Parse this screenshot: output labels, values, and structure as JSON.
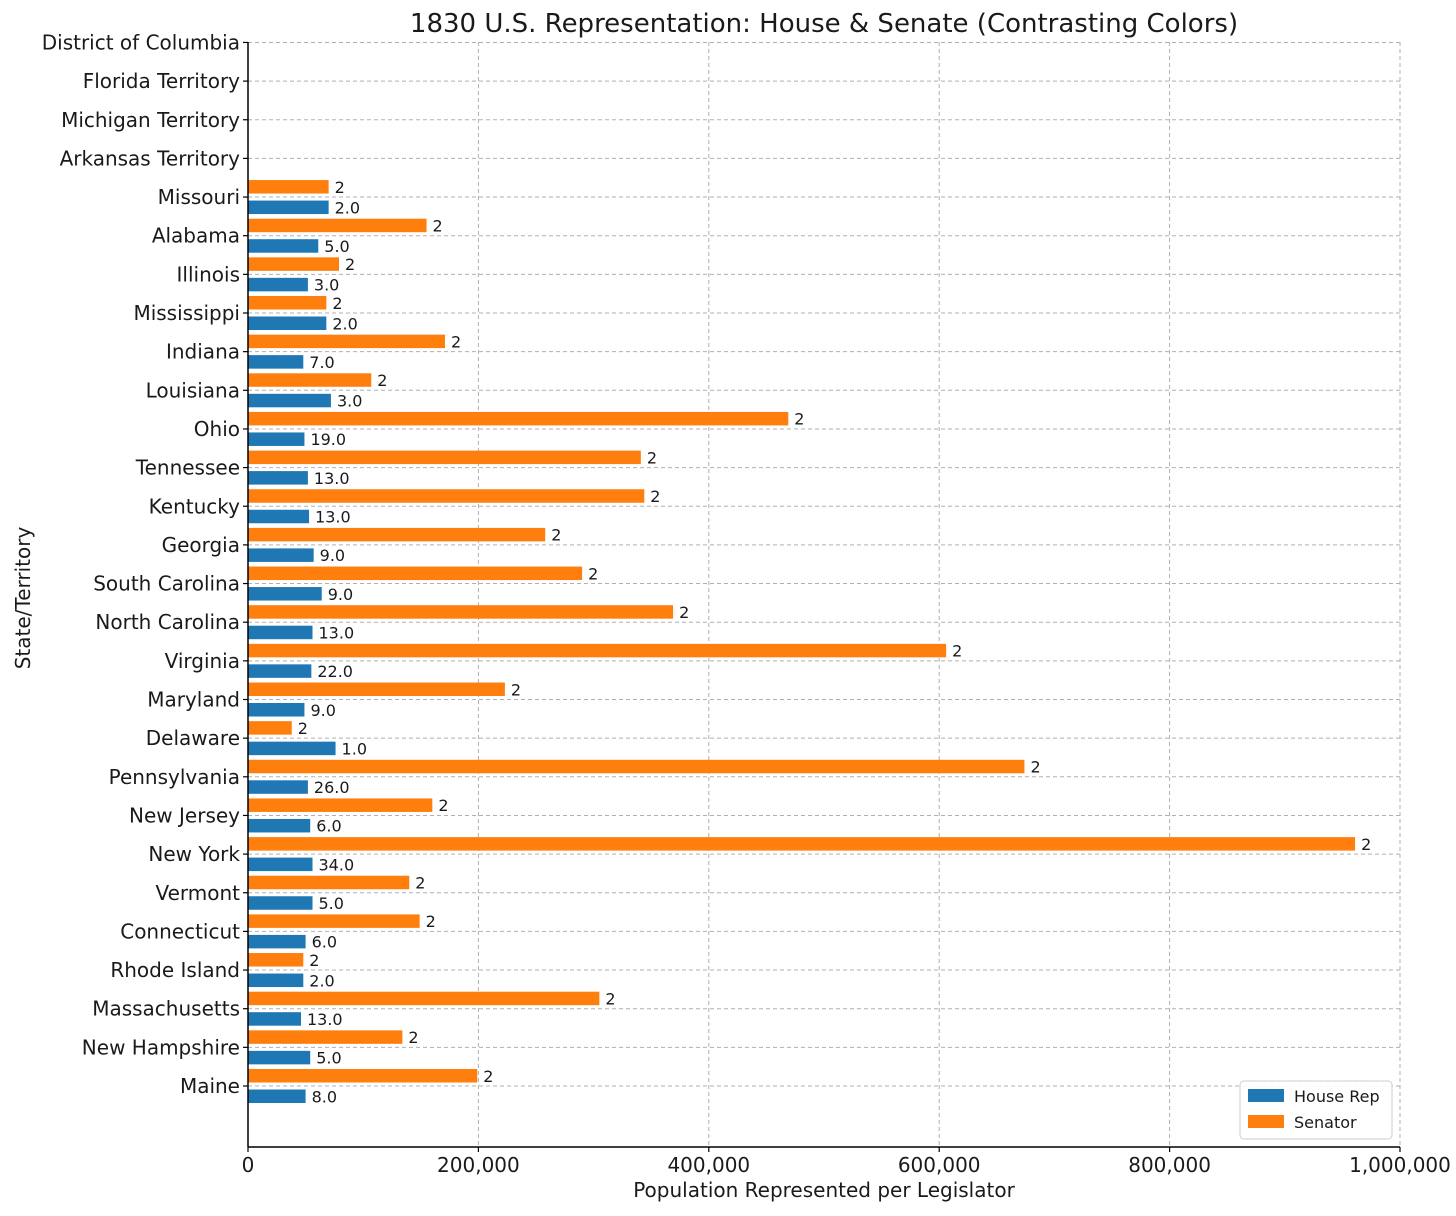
{
  "chart_data": {
    "type": "bar",
    "orientation": "horizontal",
    "title": "1830 U.S. Representation: House & Senate (Contrasting Colors)",
    "xlabel": "Population Represented per Legislator",
    "ylabel": "State/Territory",
    "xlim": [
      0,
      1000000
    ],
    "xticks": [
      0,
      200000,
      400000,
      600000,
      800000,
      1000000
    ],
    "xtick_labels": [
      "0",
      "200,000",
      "400,000",
      "600,000",
      "800,000",
      "1,000,000"
    ],
    "grid": true,
    "legend_position": "bottom-right",
    "categories": [
      "Maine",
      "New Hampshire",
      "Massachusetts",
      "Rhode Island",
      "Connecticut",
      "Vermont",
      "New York",
      "New Jersey",
      "Pennsylvania",
      "Delaware",
      "Maryland",
      "Virginia",
      "North Carolina",
      "South Carolina",
      "Georgia",
      "Kentucky",
      "Tennessee",
      "Ohio",
      "Louisiana",
      "Indiana",
      "Mississippi",
      "Illinois",
      "Alabama",
      "Missouri",
      "Arkansas Territory",
      "Michigan Territory",
      "Florida Territory",
      "District of Columbia"
    ],
    "series": [
      {
        "name": "House Rep",
        "color": "#1f77b4",
        "values": [
          50000,
          54000,
          46000,
          48000,
          50000,
          56000,
          56000,
          54000,
          52000,
          76000,
          49000,
          55000,
          56000,
          64000,
          57000,
          53000,
          52000,
          49000,
          72000,
          48000,
          68000,
          52000,
          61000,
          70000,
          0,
          0,
          0,
          0
        ],
        "labels": [
          "8.0",
          "5.0",
          "13.0",
          "2.0",
          "6.0",
          "5.0",
          "34.0",
          "6.0",
          "26.0",
          "1.0",
          "9.0",
          "22.0",
          "13.0",
          "9.0",
          "9.0",
          "13.0",
          "13.0",
          "19.0",
          "3.0",
          "7.0",
          "2.0",
          "3.0",
          "5.0",
          "2.0",
          "",
          "",
          "",
          ""
        ]
      },
      {
        "name": "Senator",
        "color": "#ff7f0e",
        "values": [
          199000,
          134000,
          305000,
          48000,
          149000,
          140000,
          961000,
          160000,
          674000,
          38000,
          223000,
          606000,
          369000,
          290000,
          258000,
          344000,
          341000,
          469000,
          107000,
          171000,
          68000,
          79000,
          155000,
          70000,
          0,
          0,
          0,
          0
        ],
        "labels": [
          "2",
          "2",
          "2",
          "2",
          "2",
          "2",
          "2",
          "2",
          "2",
          "2",
          "2",
          "2",
          "2",
          "2",
          "2",
          "2",
          "2",
          "2",
          "2",
          "2",
          "2",
          "2",
          "2",
          "2",
          "",
          "",
          "",
          ""
        ]
      }
    ]
  }
}
